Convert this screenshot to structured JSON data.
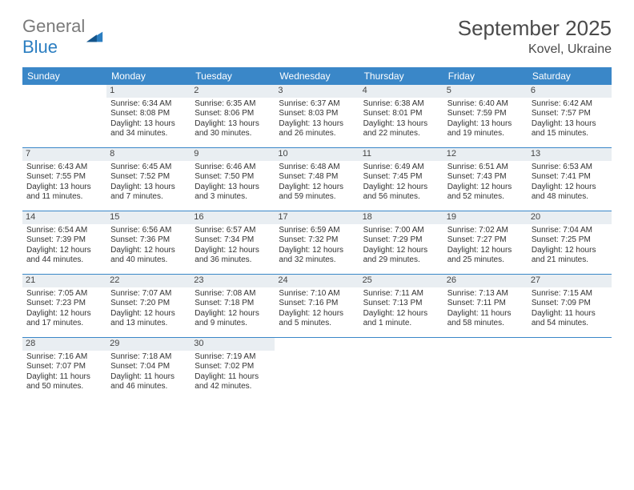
{
  "logo": {
    "text1": "General",
    "text2": "Blue"
  },
  "title": "September 2025",
  "location": "Kovel, Ukraine",
  "colors": {
    "header_bg": "#3a87c8",
    "header_text": "#ffffff",
    "daynum_bg": "#e9eef2",
    "border": "#3a87c8",
    "logo_gray": "#7a7a7a",
    "logo_blue": "#2b7ec1"
  },
  "day_headers": [
    "Sunday",
    "Monday",
    "Tuesday",
    "Wednesday",
    "Thursday",
    "Friday",
    "Saturday"
  ],
  "weeks": [
    [
      {
        "empty": true
      },
      {
        "num": "1",
        "sunrise": "Sunrise: 6:34 AM",
        "sunset": "Sunset: 8:08 PM",
        "daylight": "Daylight: 13 hours and 34 minutes."
      },
      {
        "num": "2",
        "sunrise": "Sunrise: 6:35 AM",
        "sunset": "Sunset: 8:06 PM",
        "daylight": "Daylight: 13 hours and 30 minutes."
      },
      {
        "num": "3",
        "sunrise": "Sunrise: 6:37 AM",
        "sunset": "Sunset: 8:03 PM",
        "daylight": "Daylight: 13 hours and 26 minutes."
      },
      {
        "num": "4",
        "sunrise": "Sunrise: 6:38 AM",
        "sunset": "Sunset: 8:01 PM",
        "daylight": "Daylight: 13 hours and 22 minutes."
      },
      {
        "num": "5",
        "sunrise": "Sunrise: 6:40 AM",
        "sunset": "Sunset: 7:59 PM",
        "daylight": "Daylight: 13 hours and 19 minutes."
      },
      {
        "num": "6",
        "sunrise": "Sunrise: 6:42 AM",
        "sunset": "Sunset: 7:57 PM",
        "daylight": "Daylight: 13 hours and 15 minutes."
      }
    ],
    [
      {
        "num": "7",
        "sunrise": "Sunrise: 6:43 AM",
        "sunset": "Sunset: 7:55 PM",
        "daylight": "Daylight: 13 hours and 11 minutes."
      },
      {
        "num": "8",
        "sunrise": "Sunrise: 6:45 AM",
        "sunset": "Sunset: 7:52 PM",
        "daylight": "Daylight: 13 hours and 7 minutes."
      },
      {
        "num": "9",
        "sunrise": "Sunrise: 6:46 AM",
        "sunset": "Sunset: 7:50 PM",
        "daylight": "Daylight: 13 hours and 3 minutes."
      },
      {
        "num": "10",
        "sunrise": "Sunrise: 6:48 AM",
        "sunset": "Sunset: 7:48 PM",
        "daylight": "Daylight: 12 hours and 59 minutes."
      },
      {
        "num": "11",
        "sunrise": "Sunrise: 6:49 AM",
        "sunset": "Sunset: 7:45 PM",
        "daylight": "Daylight: 12 hours and 56 minutes."
      },
      {
        "num": "12",
        "sunrise": "Sunrise: 6:51 AM",
        "sunset": "Sunset: 7:43 PM",
        "daylight": "Daylight: 12 hours and 52 minutes."
      },
      {
        "num": "13",
        "sunrise": "Sunrise: 6:53 AM",
        "sunset": "Sunset: 7:41 PM",
        "daylight": "Daylight: 12 hours and 48 minutes."
      }
    ],
    [
      {
        "num": "14",
        "sunrise": "Sunrise: 6:54 AM",
        "sunset": "Sunset: 7:39 PM",
        "daylight": "Daylight: 12 hours and 44 minutes."
      },
      {
        "num": "15",
        "sunrise": "Sunrise: 6:56 AM",
        "sunset": "Sunset: 7:36 PM",
        "daylight": "Daylight: 12 hours and 40 minutes."
      },
      {
        "num": "16",
        "sunrise": "Sunrise: 6:57 AM",
        "sunset": "Sunset: 7:34 PM",
        "daylight": "Daylight: 12 hours and 36 minutes."
      },
      {
        "num": "17",
        "sunrise": "Sunrise: 6:59 AM",
        "sunset": "Sunset: 7:32 PM",
        "daylight": "Daylight: 12 hours and 32 minutes."
      },
      {
        "num": "18",
        "sunrise": "Sunrise: 7:00 AM",
        "sunset": "Sunset: 7:29 PM",
        "daylight": "Daylight: 12 hours and 29 minutes."
      },
      {
        "num": "19",
        "sunrise": "Sunrise: 7:02 AM",
        "sunset": "Sunset: 7:27 PM",
        "daylight": "Daylight: 12 hours and 25 minutes."
      },
      {
        "num": "20",
        "sunrise": "Sunrise: 7:04 AM",
        "sunset": "Sunset: 7:25 PM",
        "daylight": "Daylight: 12 hours and 21 minutes."
      }
    ],
    [
      {
        "num": "21",
        "sunrise": "Sunrise: 7:05 AM",
        "sunset": "Sunset: 7:23 PM",
        "daylight": "Daylight: 12 hours and 17 minutes."
      },
      {
        "num": "22",
        "sunrise": "Sunrise: 7:07 AM",
        "sunset": "Sunset: 7:20 PM",
        "daylight": "Daylight: 12 hours and 13 minutes."
      },
      {
        "num": "23",
        "sunrise": "Sunrise: 7:08 AM",
        "sunset": "Sunset: 7:18 PM",
        "daylight": "Daylight: 12 hours and 9 minutes."
      },
      {
        "num": "24",
        "sunrise": "Sunrise: 7:10 AM",
        "sunset": "Sunset: 7:16 PM",
        "daylight": "Daylight: 12 hours and 5 minutes."
      },
      {
        "num": "25",
        "sunrise": "Sunrise: 7:11 AM",
        "sunset": "Sunset: 7:13 PM",
        "daylight": "Daylight: 12 hours and 1 minute."
      },
      {
        "num": "26",
        "sunrise": "Sunrise: 7:13 AM",
        "sunset": "Sunset: 7:11 PM",
        "daylight": "Daylight: 11 hours and 58 minutes."
      },
      {
        "num": "27",
        "sunrise": "Sunrise: 7:15 AM",
        "sunset": "Sunset: 7:09 PM",
        "daylight": "Daylight: 11 hours and 54 minutes."
      }
    ],
    [
      {
        "num": "28",
        "sunrise": "Sunrise: 7:16 AM",
        "sunset": "Sunset: 7:07 PM",
        "daylight": "Daylight: 11 hours and 50 minutes."
      },
      {
        "num": "29",
        "sunrise": "Sunrise: 7:18 AM",
        "sunset": "Sunset: 7:04 PM",
        "daylight": "Daylight: 11 hours and 46 minutes."
      },
      {
        "num": "30",
        "sunrise": "Sunrise: 7:19 AM",
        "sunset": "Sunset: 7:02 PM",
        "daylight": "Daylight: 11 hours and 42 minutes."
      },
      {
        "empty": true
      },
      {
        "empty": true
      },
      {
        "empty": true
      },
      {
        "empty": true
      }
    ]
  ]
}
